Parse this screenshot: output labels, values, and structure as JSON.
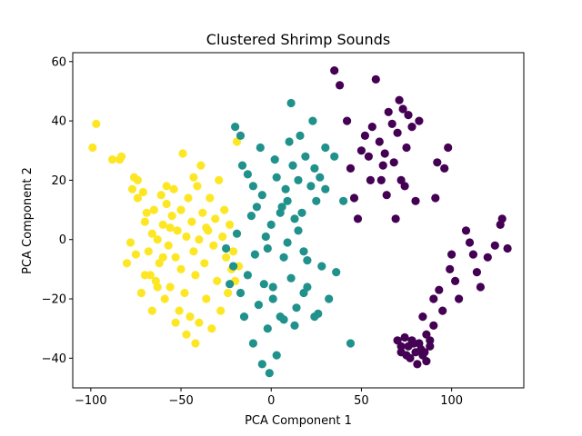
{
  "chart_data": {
    "type": "scatter",
    "title": "Clustered Shrimp Sounds",
    "xlabel": "PCA Component 1",
    "ylabel": "PCA Component 2",
    "xlim": [
      -110,
      140
    ],
    "ylim": [
      -50,
      63
    ],
    "xticks": [
      -100,
      -50,
      0,
      50,
      100
    ],
    "yticks": [
      -40,
      -20,
      0,
      20,
      40,
      60
    ],
    "xtick_labels": [
      "−100",
      "−50",
      "0",
      "50",
      "100"
    ],
    "ytick_labels": [
      "−40",
      "−20",
      "0",
      "20",
      "40",
      "60"
    ],
    "grid": false,
    "legend": "none",
    "series": [
      {
        "color": "#fde725",
        "points": [
          [
            -99,
            31
          ],
          [
            -97,
            39
          ],
          [
            -88,
            27
          ],
          [
            -84,
            27
          ],
          [
            -83,
            28
          ],
          [
            -80,
            -8
          ],
          [
            -78,
            -1
          ],
          [
            -77,
            17
          ],
          [
            -76,
            21
          ],
          [
            -75,
            -5
          ],
          [
            -74,
            14
          ],
          [
            -74,
            20
          ],
          [
            -72,
            -18
          ],
          [
            -71,
            16
          ],
          [
            -70,
            6
          ],
          [
            -69,
            9
          ],
          [
            -68,
            -4
          ],
          [
            -67,
            -12
          ],
          [
            -66,
            2
          ],
          [
            -65,
            10
          ],
          [
            -64,
            -14
          ],
          [
            -63,
            0
          ],
          [
            -62,
            -8
          ],
          [
            -61,
            15
          ],
          [
            -60,
            5
          ],
          [
            -59,
            -20
          ],
          [
            -58,
            12
          ],
          [
            -57,
            -2
          ],
          [
            -56,
            -16
          ],
          [
            -55,
            8
          ],
          [
            -54,
            17
          ],
          [
            -53,
            -6
          ],
          [
            -52,
            3
          ],
          [
            -51,
            -24
          ],
          [
            -50,
            10
          ],
          [
            -50,
            -10
          ],
          [
            -49,
            29
          ],
          [
            -48,
            -18
          ],
          [
            -47,
            1
          ],
          [
            -46,
            14
          ],
          [
            -45,
            -26
          ],
          [
            -44,
            6
          ],
          [
            -43,
            -4
          ],
          [
            -42,
            -12
          ],
          [
            -41,
            18
          ],
          [
            -40,
            -28
          ],
          [
            -40,
            0
          ],
          [
            -39,
            25
          ],
          [
            -38,
            9
          ],
          [
            -37,
            -8
          ],
          [
            -36,
            -20
          ],
          [
            -35,
            3
          ],
          [
            -34,
            14
          ],
          [
            -33,
            -30
          ],
          [
            -32,
            -2
          ],
          [
            -31,
            7
          ],
          [
            -30,
            -14
          ],
          [
            -29,
            20
          ],
          [
            -28,
            -24
          ],
          [
            -27,
            1
          ],
          [
            -26,
            10
          ],
          [
            -25,
            -6
          ],
          [
            -24,
            -18
          ],
          [
            -23,
            5
          ],
          [
            -22,
            -10
          ],
          [
            -21,
            -4
          ],
          [
            -20,
            -14
          ],
          [
            -19,
            33
          ],
          [
            -18,
            -9
          ],
          [
            -58,
            18
          ],
          [
            -60,
            -6
          ],
          [
            -66,
            -24
          ],
          [
            -53,
            -28
          ],
          [
            -47,
            -32
          ],
          [
            -42,
            -35
          ],
          [
            -36,
            4
          ],
          [
            -43,
            21
          ],
          [
            -70,
            -12
          ],
          [
            -63,
            -16
          ],
          [
            -56,
            4
          ]
        ]
      },
      {
        "color": "#21918c",
        "points": [
          [
            -20,
            38
          ],
          [
            -17,
            35
          ],
          [
            -16,
            25
          ],
          [
            -13,
            22
          ],
          [
            -10,
            18
          ],
          [
            -8,
            11
          ],
          [
            -6,
            31
          ],
          [
            -5,
            15
          ],
          [
            -3,
            1
          ],
          [
            -2,
            -3
          ],
          [
            0,
            5
          ],
          [
            1,
            -16
          ],
          [
            2,
            27
          ],
          [
            3,
            21
          ],
          [
            5,
            -26
          ],
          [
            6,
            11
          ],
          [
            7,
            -6
          ],
          [
            8,
            17
          ],
          [
            9,
            -1
          ],
          [
            10,
            33
          ],
          [
            11,
            -13
          ],
          [
            12,
            25
          ],
          [
            13,
            7
          ],
          [
            14,
            -23
          ],
          [
            15,
            20
          ],
          [
            16,
            35
          ],
          [
            17,
            9
          ],
          [
            18,
            -4
          ],
          [
            19,
            28
          ],
          [
            20,
            -16
          ],
          [
            22,
            18
          ],
          [
            23,
            40
          ],
          [
            24,
            -26
          ],
          [
            25,
            13
          ],
          [
            27,
            21
          ],
          [
            28,
            -9
          ],
          [
            30,
            17
          ],
          [
            32,
            -20
          ],
          [
            35,
            28
          ],
          [
            36,
            -11
          ],
          [
            40,
            13
          ],
          [
            44,
            -35
          ],
          [
            -25,
            -3
          ],
          [
            -23,
            -15
          ],
          [
            -21,
            -9
          ],
          [
            -19,
            2
          ],
          [
            -17,
            -18
          ],
          [
            -15,
            -26
          ],
          [
            -13,
            -12
          ],
          [
            -11,
            8
          ],
          [
            -10,
            -35
          ],
          [
            -9,
            -5
          ],
          [
            -7,
            -22
          ],
          [
            -5,
            -42
          ],
          [
            -4,
            -15
          ],
          [
            -2,
            -30
          ],
          [
            -1,
            -45
          ],
          [
            1,
            -20
          ],
          [
            3,
            -39
          ],
          [
            5,
            9
          ],
          [
            7,
            -27
          ],
          [
            9,
            13
          ],
          [
            11,
            46
          ],
          [
            13,
            -29
          ],
          [
            15,
            3
          ],
          [
            18,
            -18
          ],
          [
            20,
            -7
          ],
          [
            24,
            24
          ],
          [
            26,
            -25
          ],
          [
            30,
            31
          ]
        ]
      },
      {
        "color": "#440154",
        "points": [
          [
            35,
            57
          ],
          [
            38,
            52
          ],
          [
            42,
            40
          ],
          [
            44,
            24
          ],
          [
            46,
            14
          ],
          [
            48,
            7
          ],
          [
            50,
            30
          ],
          [
            52,
            35
          ],
          [
            55,
            20
          ],
          [
            56,
            38
          ],
          [
            58,
            54
          ],
          [
            60,
            33
          ],
          [
            62,
            25
          ],
          [
            63,
            29
          ],
          [
            65,
            43
          ],
          [
            67,
            39
          ],
          [
            69,
            7
          ],
          [
            70,
            36
          ],
          [
            71,
            47
          ],
          [
            72,
            20
          ],
          [
            73,
            44
          ],
          [
            75,
            31
          ],
          [
            76,
            42
          ],
          [
            78,
            38
          ],
          [
            80,
            13
          ],
          [
            82,
            40
          ],
          [
            84,
            -26
          ],
          [
            86,
            -32
          ],
          [
            88,
            -34
          ],
          [
            90,
            -20
          ],
          [
            91,
            14
          ],
          [
            93,
            -17
          ],
          [
            95,
            -24
          ],
          [
            98,
            31
          ],
          [
            99,
            -10
          ],
          [
            100,
            -5
          ],
          [
            102,
            -14
          ],
          [
            104,
            -20
          ],
          [
            108,
            3
          ],
          [
            110,
            -1
          ],
          [
            112,
            -5
          ],
          [
            114,
            -11
          ],
          [
            116,
            -16
          ],
          [
            120,
            -6
          ],
          [
            124,
            -2
          ],
          [
            127,
            5
          ],
          [
            128,
            7
          ],
          [
            131,
            -3
          ],
          [
            70,
            -34
          ],
          [
            72,
            -38
          ],
          [
            74,
            -33
          ],
          [
            76,
            -36
          ],
          [
            77,
            -40
          ],
          [
            79,
            -35
          ],
          [
            80,
            -38
          ],
          [
            81,
            -42
          ],
          [
            83,
            -37
          ],
          [
            84,
            -39
          ],
          [
            86,
            -41
          ],
          [
            88,
            -36
          ],
          [
            90,
            -29
          ],
          [
            72,
            -36
          ],
          [
            75,
            -39
          ],
          [
            78,
            -34
          ],
          [
            82,
            -35
          ],
          [
            85,
            -38
          ],
          [
            54,
            28
          ],
          [
            61,
            20
          ],
          [
            64,
            15
          ],
          [
            68,
            26
          ],
          [
            74,
            18
          ],
          [
            92,
            26
          ],
          [
            96,
            24
          ]
        ]
      }
    ]
  }
}
